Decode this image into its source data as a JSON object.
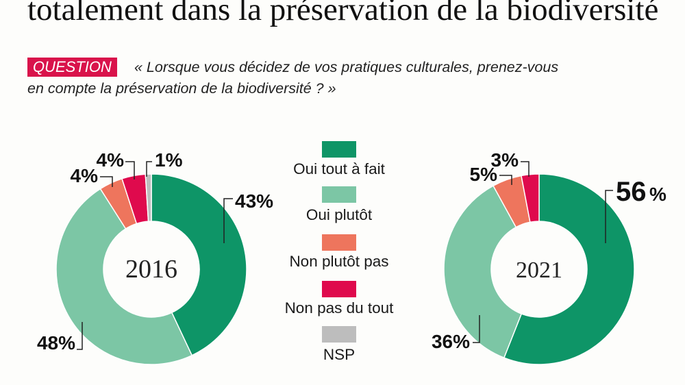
{
  "header": {
    "title": "totalement dans la préservation de la biodiversité",
    "question_badge": "QUESTION",
    "question_line_1": "« Lorsque vous décidez de vos pratiques culturales, prenez-vous",
    "question_line_2": "en compte la préservation de la biodiversité ? »"
  },
  "legend": [
    {
      "label": "Oui tout à fait",
      "color": "#0e9567"
    },
    {
      "label": "Oui plutôt",
      "color": "#7cc6a5"
    },
    {
      "label": "Non plutôt pas",
      "color": "#ee755d"
    },
    {
      "label": "Non pas du tout",
      "color": "#df0a4d"
    },
    {
      "label": "NSP",
      "color": "#bdbdbd"
    }
  ],
  "chart_data": {
    "type": "pie",
    "variant": "donut",
    "categories": [
      "Oui tout à fait",
      "Oui plutôt",
      "Non plutôt pas",
      "Non pas du tout",
      "NSP"
    ],
    "colors": [
      "#0e9567",
      "#7cc6a5",
      "#ee755d",
      "#df0a4d",
      "#bdbdbd"
    ],
    "charts": [
      {
        "center_label": "2016",
        "values": [
          43,
          48,
          4,
          4,
          1
        ],
        "labels": [
          "43%",
          "48%",
          "4%",
          "4%",
          "1%"
        ]
      },
      {
        "center_label": "2021",
        "values": [
          56,
          36,
          5,
          3,
          0
        ],
        "labels": [
          "56%",
          "36%",
          "5%",
          "3%",
          ""
        ]
      }
    ]
  }
}
